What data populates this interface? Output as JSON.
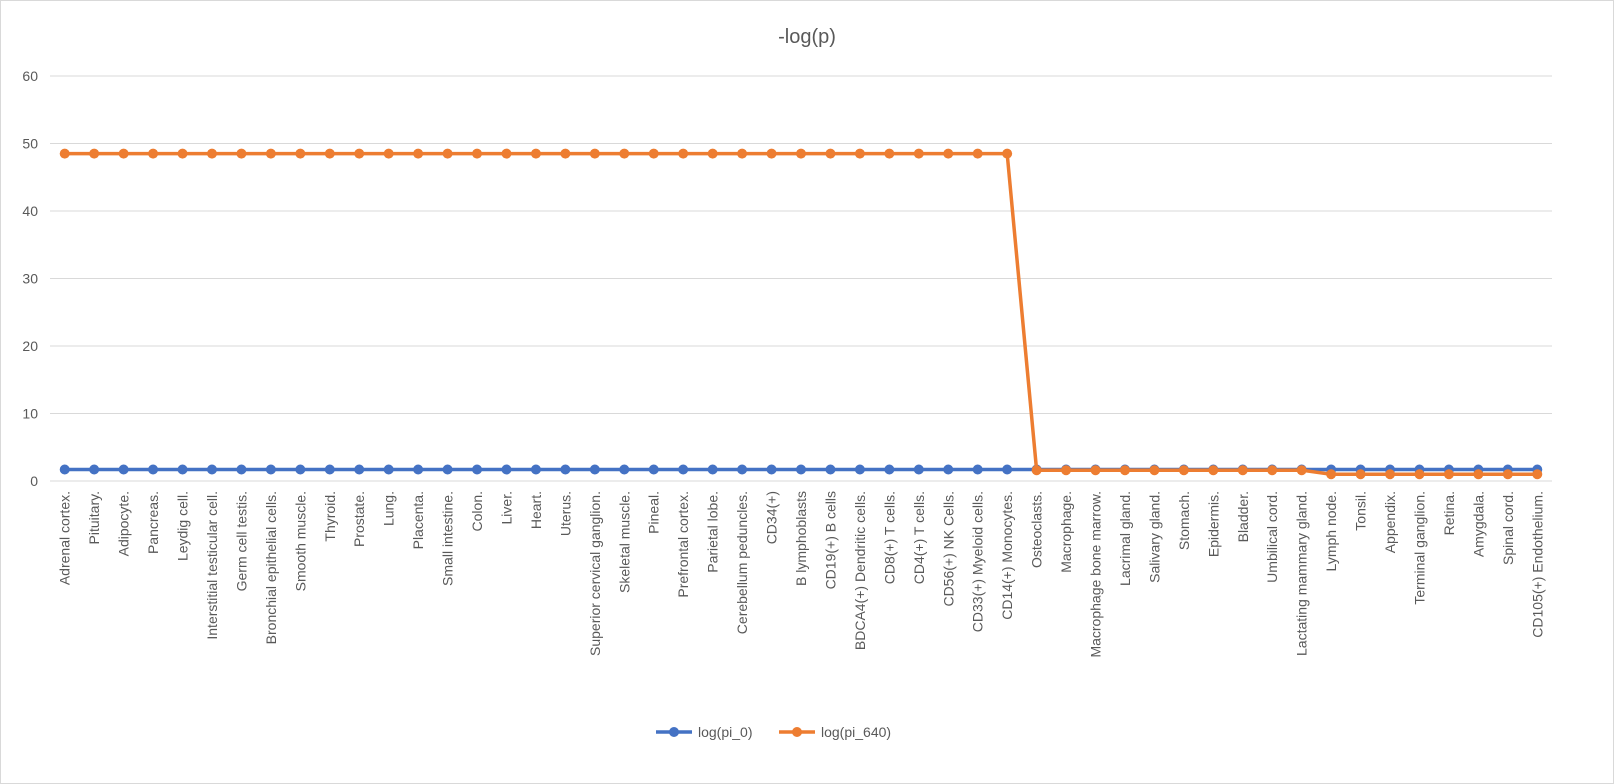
{
  "chart_data": {
    "type": "line",
    "title": "-log(p)",
    "xlabel": "",
    "ylabel": "",
    "ylim": [
      0,
      60
    ],
    "yticks": [
      0,
      10,
      20,
      30,
      40,
      50,
      60
    ],
    "grid": true,
    "legend_position": "bottom",
    "categories": [
      "Adrenal cortex.",
      "Pituitary.",
      "Adipocyte.",
      "Pancreas.",
      "Leydig cell.",
      "Interstitial testicular cell.",
      "Germ cell testis.",
      "Bronchial epithelial cells.",
      "Smooth muscle.",
      "Thyroid.",
      "Prostate.",
      "Lung.",
      "Placenta.",
      "Small intestine.",
      "Colon.",
      "Liver.",
      "Heart.",
      "Uterus.",
      "Superior cervical ganglion.",
      "Skeletal muscle.",
      "Pineal.",
      "Prefrontal cortex.",
      "Parietal lobe.",
      "Cerebellum peduncles.",
      "CD34(+)",
      "B lymphoblasts",
      "CD19(+) B cells",
      "BDCA4(+) Dendritic cells.",
      "CD8(+) T cells.",
      "CD4(+) T cells.",
      "CD56(+) NK Cells.",
      "CD33(+) Myeloid cells.",
      "CD14(+) Monocytes.",
      "Osteoclasts.",
      "Macrophage.",
      "Macrophage bone marrow.",
      "Lacrimal gland.",
      "Salivary gland.",
      "Stomach.",
      "Epidermis.",
      "Bladder.",
      "Umbilical cord.",
      "Lactating mammary gland.",
      "Lymph node.",
      "Tonsil.",
      "Appendix.",
      "Terminal ganglion.",
      "Retina.",
      "Amygdala.",
      "Spinal cord.",
      "CD105(+) Endothelium."
    ],
    "series": [
      {
        "name": "log(pi_0)",
        "color": "#4472c4",
        "values": [
          1.7,
          1.7,
          1.7,
          1.7,
          1.7,
          1.7,
          1.7,
          1.7,
          1.7,
          1.7,
          1.7,
          1.7,
          1.7,
          1.7,
          1.7,
          1.7,
          1.7,
          1.7,
          1.7,
          1.7,
          1.7,
          1.7,
          1.7,
          1.7,
          1.7,
          1.7,
          1.7,
          1.7,
          1.7,
          1.7,
          1.7,
          1.7,
          1.7,
          1.7,
          1.7,
          1.7,
          1.7,
          1.7,
          1.7,
          1.7,
          1.7,
          1.7,
          1.7,
          1.7,
          1.7,
          1.7,
          1.7,
          1.7,
          1.7,
          1.7,
          1.7
        ]
      },
      {
        "name": "log(pi_640)",
        "color": "#ed7d31",
        "values": [
          48.5,
          48.5,
          48.5,
          48.5,
          48.5,
          48.5,
          48.5,
          48.5,
          48.5,
          48.5,
          48.5,
          48.5,
          48.5,
          48.5,
          48.5,
          48.5,
          48.5,
          48.5,
          48.5,
          48.5,
          48.5,
          48.5,
          48.5,
          48.5,
          48.5,
          48.5,
          48.5,
          48.5,
          48.5,
          48.5,
          48.5,
          48.5,
          48.5,
          1.6,
          1.6,
          1.6,
          1.6,
          1.6,
          1.6,
          1.6,
          1.6,
          1.6,
          1.6,
          1.0,
          1.0,
          1.0,
          1.0,
          1.0,
          1.0,
          1.0,
          1.0
        ]
      }
    ]
  }
}
